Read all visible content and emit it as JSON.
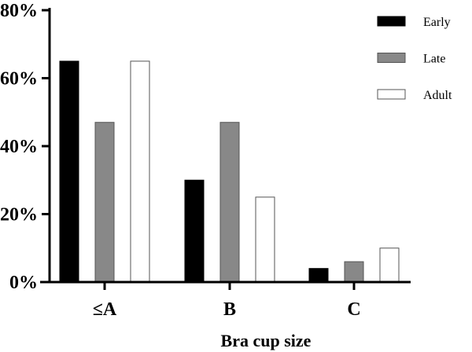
{
  "chart_data": {
    "type": "bar",
    "title": "",
    "xlabel": "Bra cup size",
    "ylabel": "",
    "categories": [
      "≤A",
      "B",
      "C"
    ],
    "series": [
      {
        "name": "Early",
        "color": "#000000",
        "values": [
          65,
          30,
          4
        ]
      },
      {
        "name": "Late",
        "color": "#888888",
        "values": [
          47,
          47,
          6
        ]
      },
      {
        "name": "Adult",
        "color": "#ffffff",
        "values": [
          65,
          25,
          10
        ]
      }
    ],
    "ylim": [
      0,
      80
    ],
    "yticks": [
      0,
      20,
      40,
      60,
      80
    ],
    "ytick_labels": [
      "0%",
      "20%",
      "40%",
      "60%",
      "80%"
    ],
    "grid": false,
    "legend_position": "top-right"
  }
}
